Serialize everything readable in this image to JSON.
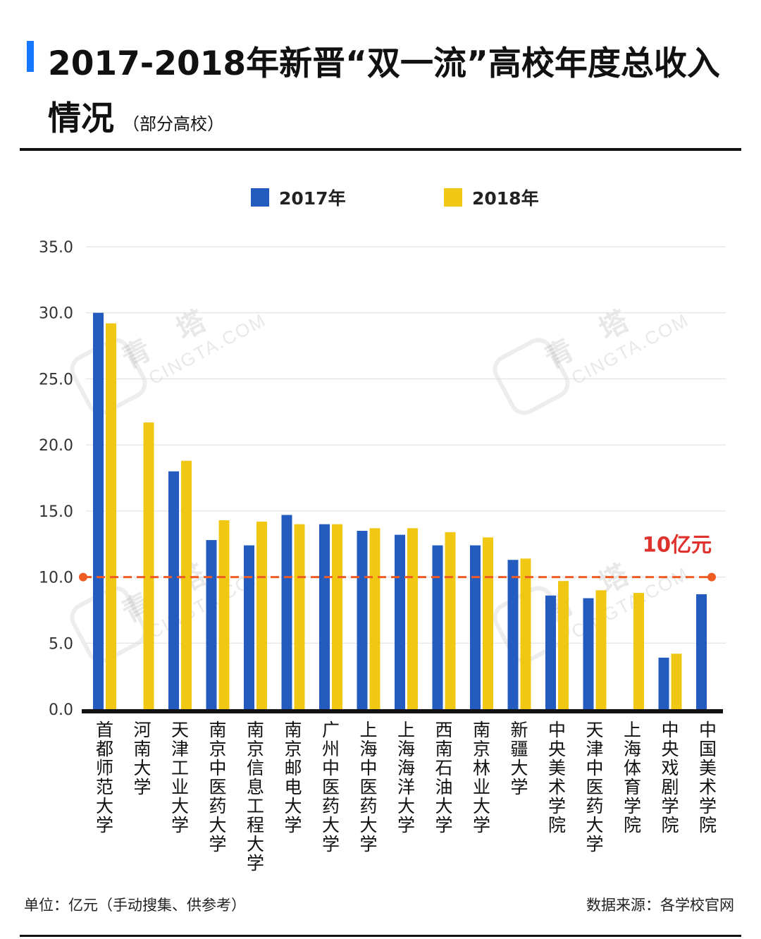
{
  "header": {
    "title_line": "2017-2018年新晋“双一流”高校年度总收入情况",
    "subtitle": "（部分高校）"
  },
  "footer": {
    "unit_note": "单位：亿元（手动搜集、供参考）",
    "source_note": "数据来源：各学校官网"
  },
  "watermark": {
    "cn": "青 塔",
    "en": "CINGTA.COM"
  },
  "colors": {
    "series_2017": "#235bbf",
    "series_2018": "#f0c814",
    "reference": "#f05a23",
    "grid": "#dddddd"
  },
  "chart_data": {
    "type": "bar",
    "title": "2017-2018年新晋“双一流”高校年度总收入情况",
    "subtitle": "（部分高校）",
    "xlabel": "",
    "ylabel": "",
    "ylim": [
      0,
      35
    ],
    "yticks": [
      "0.0",
      "5.0",
      "10.0",
      "15.0",
      "20.0",
      "25.0",
      "30.0",
      "35.0"
    ],
    "grid": true,
    "legend_position": "top-center",
    "categories": [
      "首都师范大学",
      "河南大学",
      "天津工业大学",
      "南京中医药大学",
      "南京信息工程大学",
      "南京邮电大学",
      "广州中医药大学",
      "上海中医药大学",
      "上海海洋大学",
      "西南石油大学",
      "南京林业大学",
      "新疆大学",
      "中央美术学院",
      "天津中医药大学",
      "上海体育学院",
      "中央戏剧学院",
      "中国美术学院"
    ],
    "series": [
      {
        "name": "2017年",
        "color": "#235bbf",
        "values": [
          30.0,
          null,
          18.0,
          12.8,
          12.4,
          14.7,
          14.0,
          13.5,
          13.2,
          12.4,
          12.4,
          11.3,
          8.6,
          8.4,
          null,
          3.9,
          8.7
        ]
      },
      {
        "name": "2018年",
        "color": "#f0c814",
        "values": [
          29.2,
          21.7,
          18.8,
          14.3,
          14.2,
          14.0,
          14.0,
          13.7,
          13.7,
          13.4,
          13.0,
          11.4,
          9.7,
          9.0,
          8.8,
          4.2,
          null
        ]
      }
    ],
    "reference_line": {
      "value": 10.0,
      "label": "10亿元",
      "style": "dashed"
    }
  }
}
